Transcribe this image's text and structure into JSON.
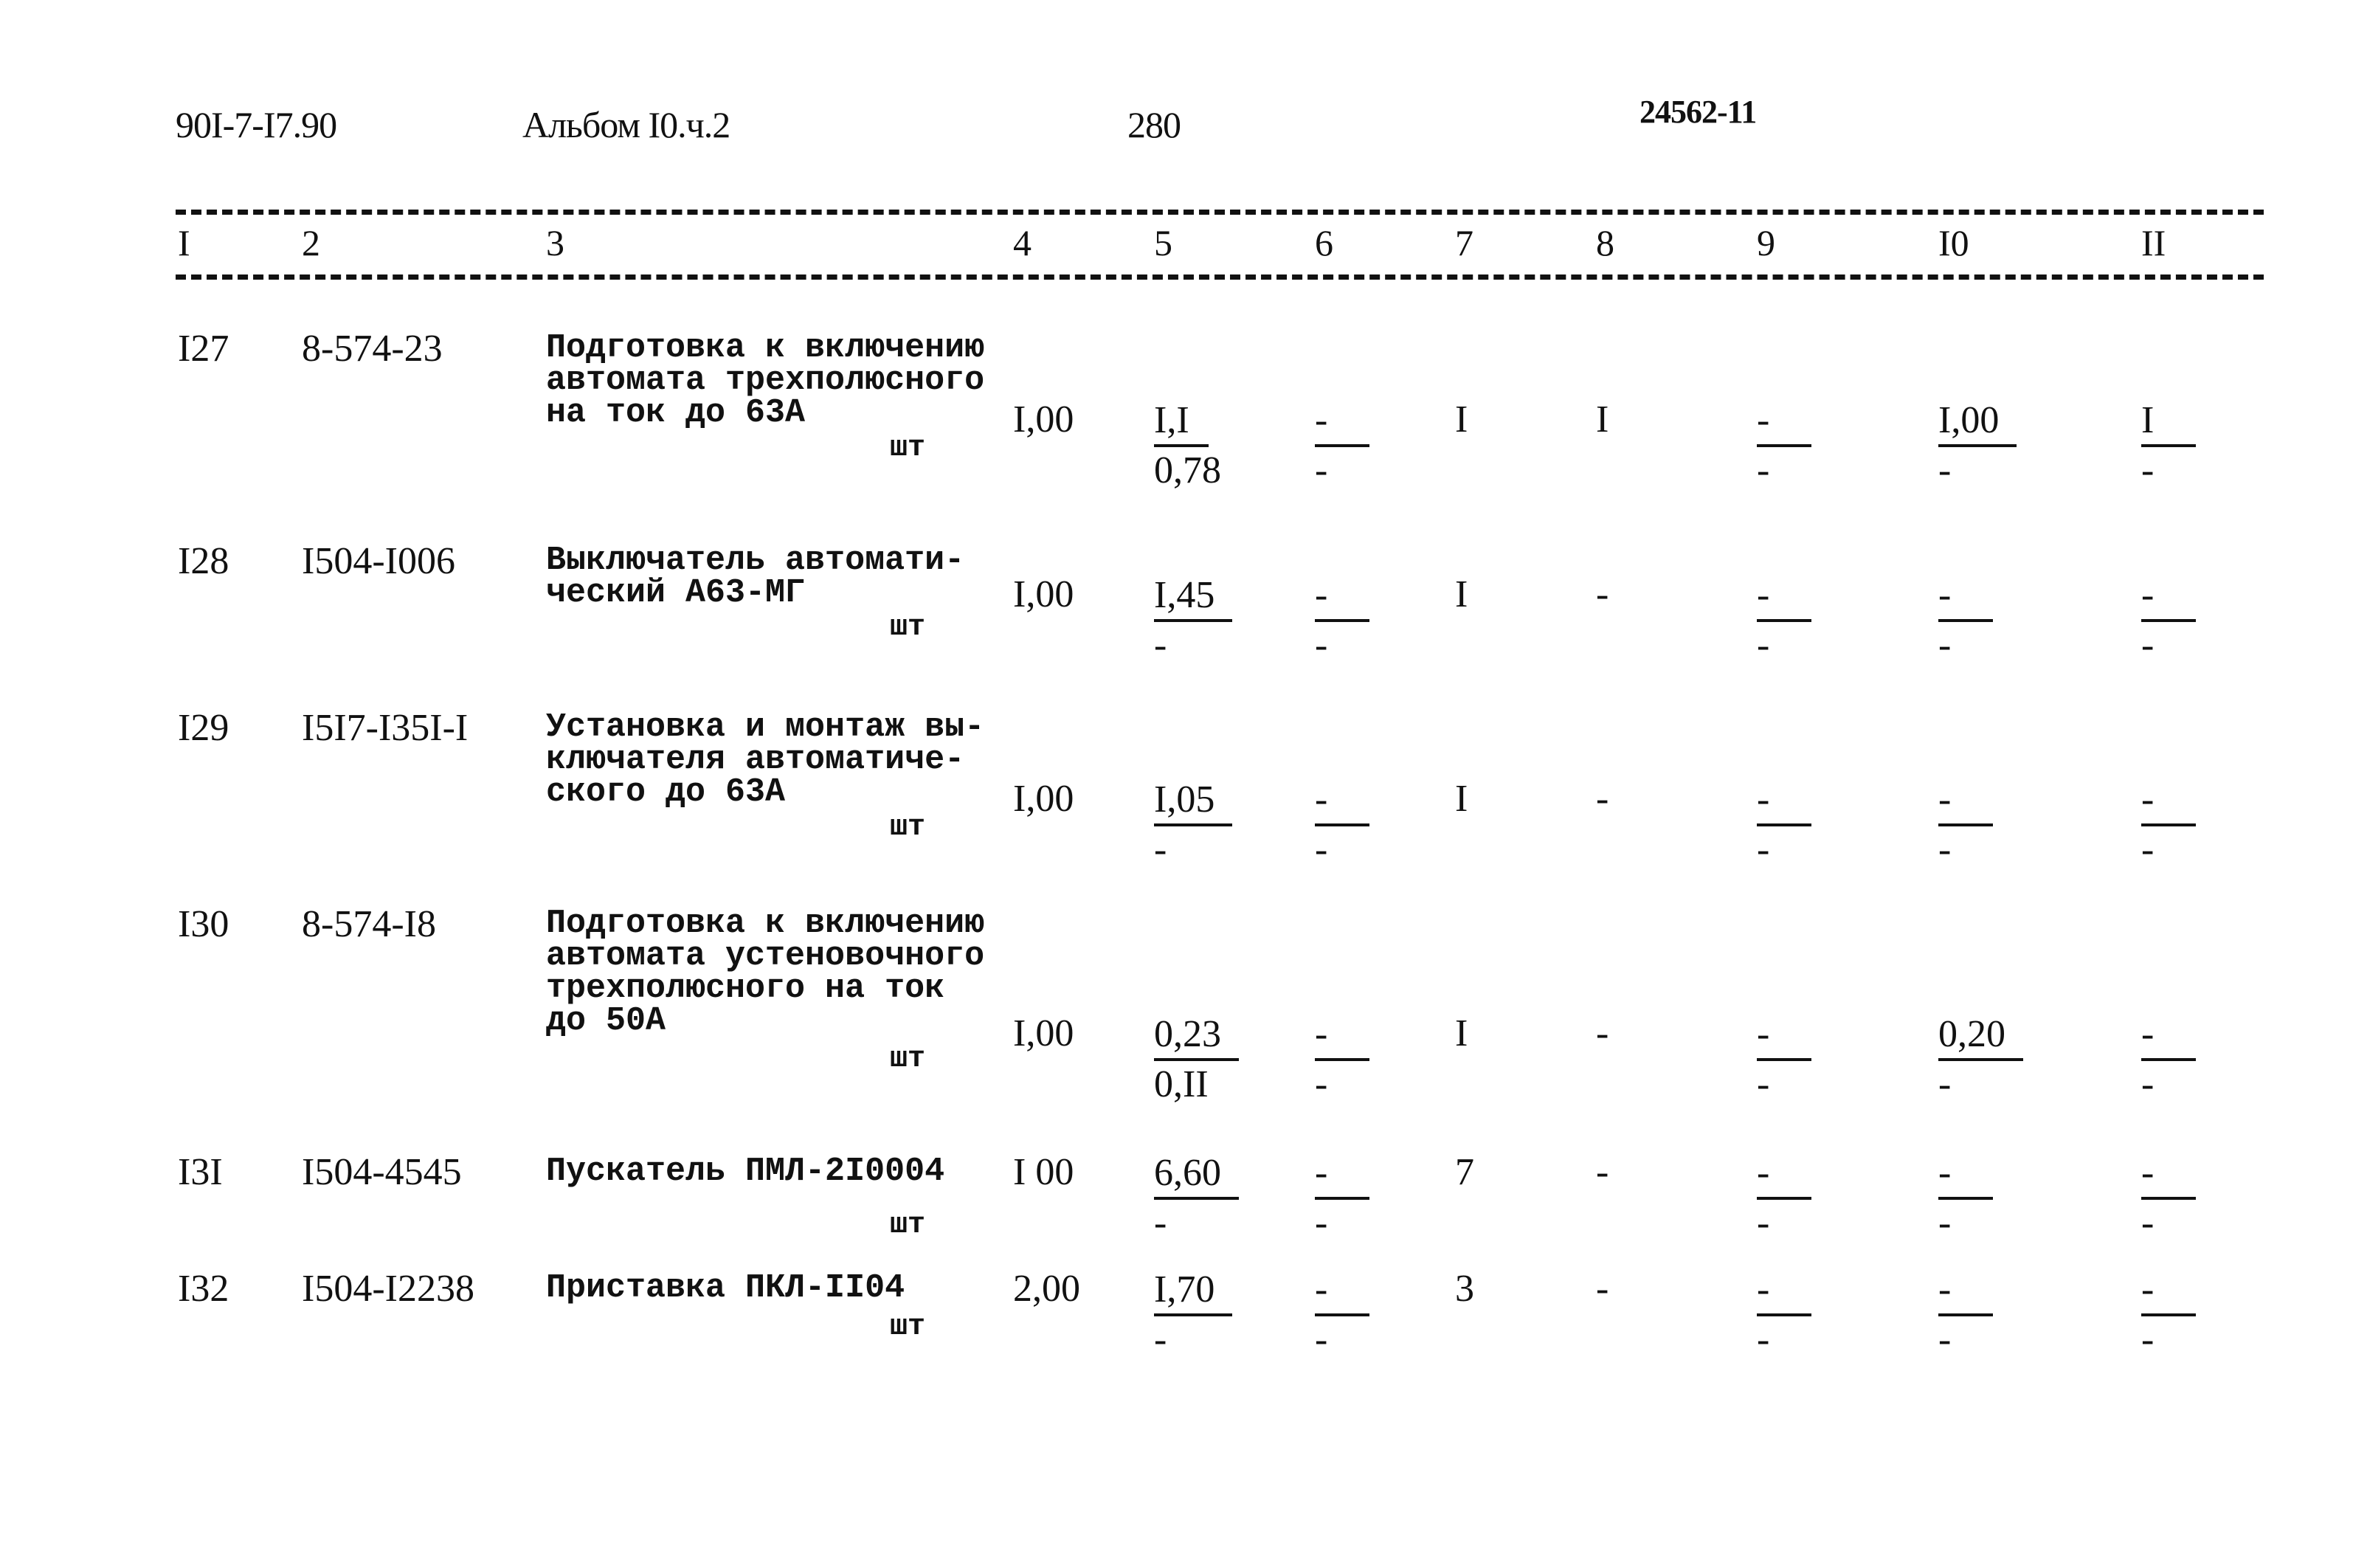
{
  "header": {
    "doc_code": "90I-7-I7.90",
    "album": "Альбом I0.ч.2",
    "page_number": "280",
    "inventory_number": "24562-11"
  },
  "column_numbers": [
    "I",
    "2",
    "3",
    "4",
    "5",
    "6",
    "7",
    "8",
    "9",
    "I0",
    "II"
  ],
  "rows": [
    {
      "no": "I27",
      "code": "8-574-23",
      "desc": [
        "Подготовка к включению",
        "автомата трехполюсного",
        "на ток до 63А"
      ],
      "unit": "шт",
      "c4": "I,00",
      "c5": [
        "I,I",
        "0,78"
      ],
      "c6": [
        "-",
        "-"
      ],
      "c7": "I",
      "c8": "I",
      "c9": [
        "-",
        "-"
      ],
      "c10": [
        "I,00",
        "-"
      ],
      "c11": [
        "I",
        "-"
      ]
    },
    {
      "no": "I28",
      "code": "I504-I006",
      "desc": [
        "Выключатель автомати-",
        "ческий А63-МГ"
      ],
      "unit": "шт",
      "c4": "I,00",
      "c5": [
        "I,45",
        "-"
      ],
      "c6": [
        "-",
        "-"
      ],
      "c7": "I",
      "c8": "-",
      "c9": [
        "-",
        "-"
      ],
      "c10": [
        "-",
        "-"
      ],
      "c11": [
        "-",
        "-"
      ]
    },
    {
      "no": "I29",
      "code": "I5I7-I35I-I",
      "desc": [
        "Установка и монтаж вы-",
        "ключателя автоматиче-",
        "ского до 63А"
      ],
      "unit": "шт",
      "c4": "I,00",
      "c5": [
        "I,05",
        "-"
      ],
      "c6": [
        "-",
        "-"
      ],
      "c7": "I",
      "c8": "-",
      "c9": [
        "-",
        "-"
      ],
      "c10": [
        "-",
        "-"
      ],
      "c11": [
        "-",
        "-"
      ]
    },
    {
      "no": "I30",
      "code": "8-574-I8",
      "desc": [
        "Подготовка к включению",
        "автомата устеновочного",
        "трехполюсного на ток",
        "до 50А"
      ],
      "unit": "шт",
      "c4": "I,00",
      "c5": [
        "0,23",
        "0,II"
      ],
      "c6": [
        "-",
        "-"
      ],
      "c7": "I",
      "c8": "-",
      "c9": [
        "-",
        "-"
      ],
      "c10": [
        "0,20",
        "-"
      ],
      "c11": [
        "-",
        "-"
      ]
    },
    {
      "no": "I3I",
      "code": "I504-4545",
      "desc": [
        "Пускатель ПМЛ-2I0004"
      ],
      "unit": "шт",
      "c4": "I 00",
      "c5": [
        "6,60",
        "-"
      ],
      "c6": [
        "-",
        "-"
      ],
      "c7": "7",
      "c8": "-",
      "c9": [
        "-",
        "-"
      ],
      "c10": [
        "-",
        "-"
      ],
      "c11": [
        "-",
        "-"
      ]
    },
    {
      "no": "I32",
      "code": "I504-I2238",
      "desc": [
        "Приставка ПКЛ-II04"
      ],
      "unit": "шт",
      "c4": "2,00",
      "c5": [
        "I,70",
        "-"
      ],
      "c6": [
        "-",
        "-"
      ],
      "c7": "3",
      "c8": "-",
      "c9": [
        "-",
        "-"
      ],
      "c10": [
        "-",
        "-"
      ],
      "c11": [
        "-",
        "-"
      ]
    }
  ]
}
